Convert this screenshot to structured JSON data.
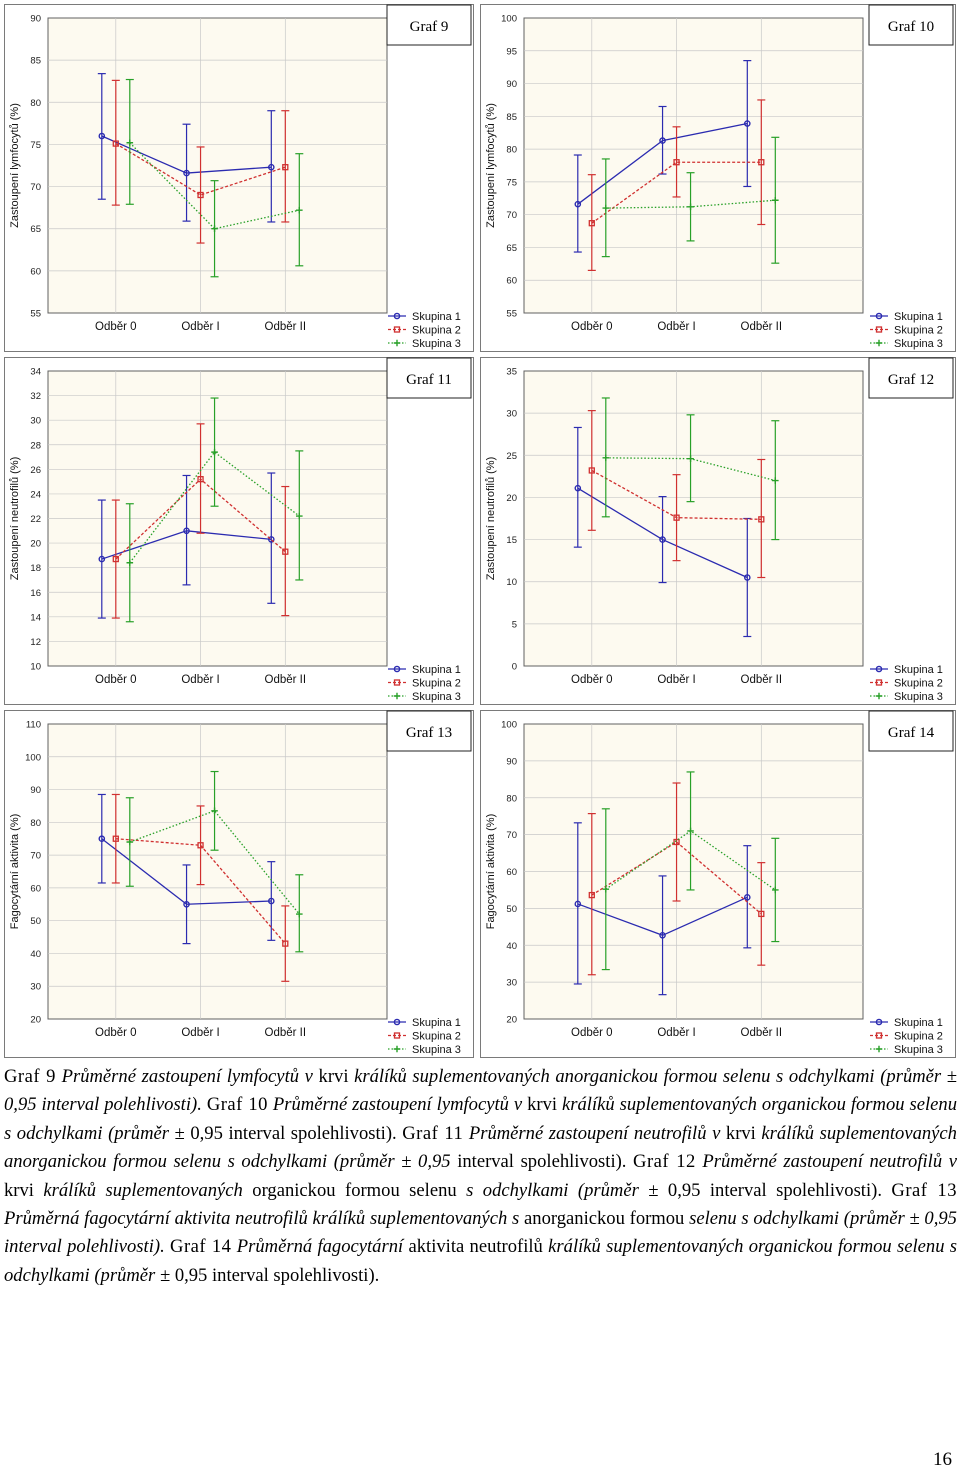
{
  "colors": {
    "skupina_1": "#2b2bb0",
    "skupina_2": "#d03030",
    "skupina_3": "#28a028",
    "plot_bg": "#fdfaf0",
    "grid": "#c8c8c8"
  },
  "legend_labels": [
    "Skupina 1",
    "Skupina 2",
    "Skupina 3"
  ],
  "chart_data": [
    {
      "id": "graf-9",
      "type": "line",
      "title": "Graf 9",
      "ylabel": "Zastoupení lymfocytů (%)",
      "ylim": [
        55,
        90
      ],
      "yticks": [
        55,
        60,
        65,
        70,
        75,
        80,
        85,
        90
      ],
      "categories": [
        "Odběr 0",
        "Odběr I",
        "Odběr II"
      ],
      "legend": "bottom-right",
      "grid": true,
      "series": [
        {
          "name": "Skupina 1",
          "values": [
            76.0,
            71.6,
            72.3
          ],
          "lower": [
            68.5,
            65.9,
            65.8
          ],
          "upper": [
            83.4,
            77.4,
            79.0
          ]
        },
        {
          "name": "Skupina 2",
          "values": [
            75.1,
            69.0,
            72.3
          ],
          "lower": [
            67.8,
            63.3,
            65.8
          ],
          "upper": [
            82.6,
            74.7,
            79.0
          ]
        },
        {
          "name": "Skupina 3",
          "values": [
            75.2,
            65.0,
            67.2
          ],
          "lower": [
            67.9,
            59.3,
            60.6
          ],
          "upper": [
            82.7,
            70.7,
            73.9
          ]
        }
      ]
    },
    {
      "id": "graf-10",
      "type": "line",
      "title": "Graf 10",
      "ylabel": "Zastoupení lymfocytů (%)",
      "ylim": [
        55,
        100
      ],
      "yticks": [
        55,
        60,
        65,
        70,
        75,
        80,
        85,
        90,
        95,
        100
      ],
      "categories": [
        "Odběr 0",
        "Odběr I",
        "Odběr II"
      ],
      "legend": "bottom-right",
      "grid": true,
      "series": [
        {
          "name": "Skupina 1",
          "values": [
            71.6,
            81.3,
            83.9
          ],
          "lower": [
            64.3,
            76.2,
            74.3
          ],
          "upper": [
            79.1,
            86.5,
            93.5
          ]
        },
        {
          "name": "Skupina 2",
          "values": [
            68.7,
            78.0,
            78.0
          ],
          "lower": [
            61.5,
            72.7,
            68.5
          ],
          "upper": [
            76.1,
            83.4,
            87.5
          ]
        },
        {
          "name": "Skupina 3",
          "values": [
            71.0,
            71.2,
            72.2
          ],
          "lower": [
            63.6,
            66.0,
            62.6
          ],
          "upper": [
            78.5,
            76.4,
            81.8
          ]
        }
      ]
    },
    {
      "id": "graf-11",
      "type": "line",
      "title": "Graf 11",
      "ylabel": "Zastoupení neutrofilů (%)",
      "ylim": [
        10,
        34
      ],
      "yticks": [
        10,
        12,
        14,
        16,
        18,
        20,
        22,
        24,
        26,
        28,
        30,
        32,
        34
      ],
      "categories": [
        "Odběr 0",
        "Odběr I",
        "Odběr II"
      ],
      "legend": "bottom-right",
      "grid": true,
      "series": [
        {
          "name": "Skupina 1",
          "values": [
            18.7,
            21.0,
            20.3
          ],
          "lower": [
            13.9,
            16.6,
            15.1
          ],
          "upper": [
            23.5,
            25.5,
            25.7
          ]
        },
        {
          "name": "Skupina 2",
          "values": [
            18.7,
            25.2,
            19.3
          ],
          "lower": [
            13.9,
            20.8,
            14.1
          ],
          "upper": [
            23.5,
            29.7,
            24.6
          ]
        },
        {
          "name": "Skupina 3",
          "values": [
            18.4,
            27.4,
            22.2
          ],
          "lower": [
            13.6,
            23.0,
            17.0
          ],
          "upper": [
            23.2,
            31.8,
            27.5
          ]
        }
      ]
    },
    {
      "id": "graf-12",
      "type": "line",
      "title": "Graf 12",
      "ylabel": "Zastoupení neutrofilů (%)",
      "ylim": [
        0,
        35
      ],
      "yticks": [
        0,
        5,
        10,
        15,
        20,
        25,
        30,
        35
      ],
      "categories": [
        "Odběr 0",
        "Odběr I",
        "Odběr II"
      ],
      "legend": "bottom-right",
      "grid": true,
      "series": [
        {
          "name": "Skupina 1",
          "values": [
            21.1,
            15.0,
            10.5
          ],
          "lower": [
            14.1,
            9.9,
            3.5
          ],
          "upper": [
            28.3,
            20.1,
            17.5
          ]
        },
        {
          "name": "Skupina 2",
          "values": [
            23.2,
            17.6,
            17.4
          ],
          "lower": [
            16.1,
            12.5,
            10.5
          ],
          "upper": [
            30.3,
            22.7,
            24.5
          ]
        },
        {
          "name": "Skupina 3",
          "values": [
            24.7,
            24.6,
            22.0
          ],
          "lower": [
            17.7,
            19.5,
            15.0
          ],
          "upper": [
            31.8,
            29.8,
            29.1
          ]
        }
      ]
    },
    {
      "id": "graf-13",
      "type": "line",
      "title": "Graf 13",
      "ylabel": "Fagocytární aktivita (%)",
      "ylim": [
        20,
        110
      ],
      "yticks": [
        20,
        30,
        40,
        50,
        60,
        70,
        80,
        90,
        100,
        110
      ],
      "categories": [
        "Odběr 0",
        "Odběr I",
        "Odběr II"
      ],
      "legend": "bottom-right",
      "grid": true,
      "series": [
        {
          "name": "Skupina 1",
          "values": [
            75.0,
            55.0,
            56.0
          ],
          "lower": [
            61.5,
            43.0,
            44.0
          ],
          "upper": [
            88.5,
            67.0,
            68.0
          ]
        },
        {
          "name": "Skupina 2",
          "values": [
            75.0,
            73.0,
            43.0
          ],
          "lower": [
            61.5,
            61.0,
            31.5
          ],
          "upper": [
            88.5,
            85.0,
            54.5
          ]
        },
        {
          "name": "Skupina 3",
          "values": [
            74.0,
            83.5,
            52.0
          ],
          "lower": [
            60.5,
            71.5,
            40.5
          ],
          "upper": [
            87.5,
            95.5,
            64.0
          ]
        }
      ]
    },
    {
      "id": "graf-14",
      "type": "line",
      "title": "Graf 14",
      "ylabel": "Fagocytární aktivita (%)",
      "ylim": [
        20,
        100
      ],
      "yticks": [
        20,
        30,
        40,
        50,
        60,
        70,
        80,
        90,
        100
      ],
      "categories": [
        "Odběr 0",
        "Odběr I",
        "Odběr II"
      ],
      "legend": "bottom-right",
      "grid": true,
      "series": [
        {
          "name": "Skupina 1",
          "values": [
            51.2,
            42.7,
            53.0
          ],
          "lower": [
            29.5,
            26.6,
            39.3
          ],
          "upper": [
            73.2,
            58.8,
            67.0
          ]
        },
        {
          "name": "Skupina 2",
          "values": [
            53.6,
            68.0,
            48.5
          ],
          "lower": [
            32.0,
            52.0,
            34.6
          ],
          "upper": [
            75.7,
            84.0,
            62.4
          ]
        },
        {
          "name": "Skupina 3",
          "values": [
            55.2,
            71.0,
            55.0
          ],
          "lower": [
            33.4,
            55.0,
            41.0
          ],
          "upper": [
            77.0,
            87.0,
            69.0
          ]
        }
      ]
    }
  ],
  "caption": {
    "g9_label": "Graf 9",
    "g9_text": "Průměrné zastoupení lymfocytů v",
    "g9_krvi": "krvi",
    "g9_text2": "králíků suplementovaných anorganickou formou selenu s odchylkami (průměr ± 0,95 interval polehlivosti).",
    "g10_label": "Graf 10",
    "g10_text": "Průměrné zastoupení lymfocytů v",
    "g10_krvi": "krvi",
    "g10_text2": "králíků suplementovaných organickou formou selenu s odchylkami (průměr ±",
    "g10_text3": "0,95 interval spolehlivosti).",
    "g11_label": "Graf 11",
    "g11_text": "Průměrné zastoupení neutrofilů v",
    "g11_krvi": "krvi",
    "g11_text2": "králíků suplementovaných anorganickou formou selenu s odchylkami (průměr ± 0,95",
    "g11_text3": "interval spolehlivosti).",
    "g12_label": "Graf 12",
    "g12_text": "Průměrné zastoupení neutrofilů v",
    "g12_krvi": "krvi",
    "g12_text2": "králíků suplementovaných",
    "g12_text3": "organickou formou selenu",
    "g12_text4": "s odchylkami (průměr ±",
    "g12_text5": "0,95 interval spolehlivosti).",
    "g13_label": "Graf 13",
    "g13_text": "Průměrná fagocytární aktivita neutrofilů králíků suplementovaných s",
    "g13_text2": "anorganickou formou",
    "g13_text3": "selenu s odchylkami (průměr ± 0,95 interval polehlivosti).",
    "g14_label": "Graf 14",
    "g14_text": "Průměrná fagocytární",
    "g14_text2": "aktivita neutrofilů",
    "g14_text3": "králíků suplementovaných organickou formou selenu s odchylkami (průměr ±",
    "g14_text4": "0,95 interval spolehlivosti)."
  },
  "page_number": "16"
}
